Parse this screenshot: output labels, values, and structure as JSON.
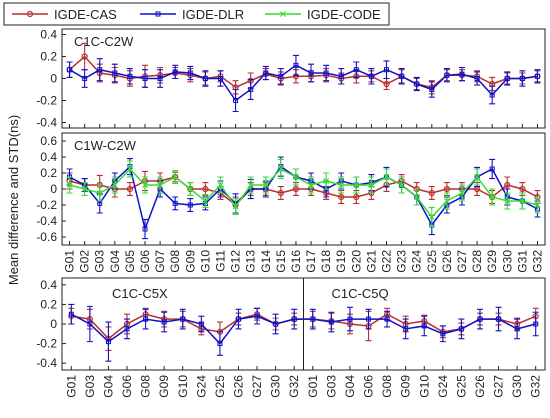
{
  "chart_data": [
    {
      "type": "line",
      "annotation": "C1C-C2W",
      "ylim": [
        -0.45,
        0.45
      ],
      "yticks": [
        -0.4,
        -0.2,
        0,
        0.2,
        0.4
      ],
      "series": [
        {
          "color": "#b8312f",
          "marker": "circle",
          "values": [
            0.08,
            0.2,
            0.05,
            0.03,
            0.0,
            0.02,
            0.03,
            0.05,
            0.03,
            0.0,
            0.02,
            -0.08,
            -0.02,
            0.04,
            0.0,
            0.02,
            0.02,
            0.03,
            0.0,
            0.02,
            0.02,
            -0.05,
            0.02,
            -0.05,
            -0.08,
            0.03,
            0.03,
            0.02,
            -0.05,
            0.0,
            0.0,
            0.02
          ],
          "errors": [
            0.07,
            0.12,
            0.08,
            0.07,
            0.07,
            0.1,
            0.07,
            0.05,
            0.06,
            0.06,
            0.05,
            0.06,
            0.07,
            0.05,
            0.06,
            0.06,
            0.05,
            0.06,
            0.05,
            0.06,
            0.05,
            0.05,
            0.06,
            0.05,
            0.06,
            0.05,
            0.05,
            0.05,
            0.06,
            0.05,
            0.05,
            0.05
          ]
        },
        {
          "color": "#1010c8",
          "marker": "square",
          "values": [
            0.08,
            0.0,
            0.08,
            0.05,
            0.02,
            0.0,
            0.0,
            0.06,
            0.05,
            0.0,
            0.0,
            -0.2,
            -0.1,
            0.05,
            0.02,
            0.12,
            0.05,
            0.05,
            0.02,
            0.08,
            0.02,
            0.08,
            0.02,
            -0.05,
            -0.1,
            0.03,
            0.04,
            0.0,
            -0.15,
            0.0,
            0.0,
            0.02
          ],
          "errors": [
            0.07,
            0.08,
            0.1,
            0.08,
            0.07,
            0.08,
            0.08,
            0.06,
            0.06,
            0.07,
            0.07,
            0.1,
            0.09,
            0.06,
            0.07,
            0.09,
            0.08,
            0.07,
            0.07,
            0.07,
            0.07,
            0.08,
            0.07,
            0.06,
            0.07,
            0.06,
            0.06,
            0.06,
            0.08,
            0.06,
            0.07,
            0.06
          ]
        }
      ]
    },
    {
      "type": "line",
      "annotation": "C1W-C2W",
      "ylabel": "Mean difference and STD(ns)",
      "ylim": [
        -0.7,
        0.7
      ],
      "yticks": [
        -0.6,
        -0.4,
        -0.2,
        0,
        0.2,
        0.4,
        0.6
      ],
      "categories": [
        "G01",
        "G02",
        "G03",
        "G04",
        "G05",
        "G06",
        "G07",
        "G08",
        "G09",
        "G10",
        "G11",
        "G12",
        "G13",
        "G14",
        "G15",
        "G16",
        "G17",
        "G18",
        "G19",
        "G20",
        "G21",
        "G22",
        "G23",
        "G24",
        "G25",
        "G26",
        "G27",
        "G28",
        "G29",
        "G30",
        "G31",
        "G32"
      ],
      "series": [
        {
          "name": "IGDE-CAS",
          "color": "#b8312f",
          "marker": "circle",
          "values": [
            0.1,
            0.05,
            0.05,
            0.0,
            0.0,
            0.1,
            0.1,
            0.15,
            0.0,
            0.0,
            -0.05,
            -0.2,
            0.0,
            0.0,
            -0.05,
            0.0,
            0.0,
            -0.05,
            -0.1,
            -0.1,
            -0.05,
            0.05,
            0.1,
            0.0,
            -0.05,
            0.0,
            0.0,
            0.0,
            -0.1,
            0.05,
            0.0,
            -0.1
          ],
          "errors": [
            0.1,
            0.08,
            0.12,
            0.1,
            0.08,
            0.12,
            0.1,
            0.06,
            0.08,
            0.08,
            0.08,
            0.1,
            0.08,
            0.08,
            0.08,
            0.08,
            0.08,
            0.08,
            0.08,
            0.08,
            0.08,
            0.08,
            0.08,
            0.08,
            0.08,
            0.08,
            0.08,
            0.08,
            0.08,
            0.1,
            0.08,
            0.08
          ]
        },
        {
          "name": "IGDE-DLR",
          "color": "#1010c8",
          "marker": "square",
          "values": [
            0.15,
            0.05,
            -0.18,
            0.1,
            0.28,
            -0.5,
            0.0,
            -0.18,
            -0.2,
            -0.18,
            0.0,
            -0.18,
            0.0,
            0.0,
            0.28,
            0.15,
            0.1,
            0.0,
            0.1,
            0.05,
            0.08,
            0.15,
            0.05,
            -0.1,
            -0.45,
            -0.2,
            -0.1,
            0.15,
            0.25,
            -0.1,
            -0.15,
            -0.25
          ],
          "errors": [
            0.1,
            0.08,
            0.12,
            0.1,
            0.1,
            0.12,
            0.1,
            0.08,
            0.08,
            0.08,
            0.1,
            0.12,
            0.12,
            0.1,
            0.12,
            0.1,
            0.1,
            0.1,
            0.1,
            0.1,
            0.1,
            0.12,
            0.1,
            0.1,
            0.12,
            0.1,
            0.1,
            0.12,
            0.12,
            0.1,
            0.1,
            0.1
          ]
        },
        {
          "name": "IGDE-CODE",
          "color": "#33dd33",
          "marker": "x",
          "values": [
            0.05,
            0.0,
            -0.05,
            0.05,
            0.25,
            0.05,
            0.05,
            0.15,
            0.0,
            -0.15,
            0.05,
            -0.22,
            0.05,
            0.05,
            0.25,
            0.15,
            0.05,
            0.1,
            0.05,
            0.05,
            0.05,
            0.15,
            0.05,
            -0.1,
            -0.35,
            -0.15,
            -0.05,
            0.15,
            -0.1,
            -0.15,
            -0.15,
            -0.2
          ],
          "errors": [
            0.1,
            0.08,
            0.1,
            0.1,
            0.1,
            0.1,
            0.1,
            0.08,
            0.08,
            0.08,
            0.1,
            0.1,
            0.1,
            0.1,
            0.12,
            0.1,
            0.1,
            0.1,
            0.1,
            0.1,
            0.1,
            0.1,
            0.1,
            0.1,
            0.12,
            0.1,
            0.1,
            0.1,
            0.1,
            0.1,
            0.1,
            0.1
          ]
        }
      ]
    },
    {
      "type": "line",
      "annotations": [
        "C1C-C5X",
        "C1C-C5Q"
      ],
      "ylim": [
        -0.47,
        0.47
      ],
      "yticks": [
        -0.4,
        -0.2,
        0,
        0.2,
        0.4
      ],
      "categories": [
        "G01",
        "G03",
        "G04",
        "G06",
        "G08",
        "G09",
        "G10",
        "G24",
        "G25",
        "G26",
        "G27",
        "G30",
        "G32",
        "G01",
        "G03",
        "G04",
        "G06",
        "G08",
        "G09",
        "G10",
        "G24",
        "G25",
        "G26",
        "G27",
        "G30",
        "G32"
      ],
      "series": [
        {
          "color": "#b8312f",
          "marker": "circle",
          "values": [
            0.08,
            0.05,
            -0.15,
            0.0,
            0.1,
            0.05,
            0.05,
            -0.05,
            -0.08,
            0.05,
            0.1,
            0.0,
            0.05,
            0.05,
            0.03,
            0.0,
            -0.02,
            0.1,
            0.0,
            0.03,
            -0.08,
            -0.05,
            0.05,
            0.05,
            0.0,
            0.08
          ],
          "errors": [
            0.08,
            0.1,
            0.12,
            0.1,
            0.06,
            0.08,
            0.08,
            0.06,
            0.1,
            0.06,
            0.06,
            0.06,
            0.06,
            0.08,
            0.08,
            0.1,
            0.15,
            0.06,
            0.08,
            0.06,
            0.06,
            0.06,
            0.06,
            0.06,
            0.06,
            0.08
          ]
        },
        {
          "color": "#1010c8",
          "marker": "square",
          "values": [
            0.1,
            0.0,
            -0.18,
            -0.05,
            0.05,
            0.02,
            0.05,
            0.0,
            -0.2,
            0.05,
            0.08,
            0.0,
            0.05,
            0.05,
            0.02,
            0.05,
            0.05,
            0.05,
            -0.05,
            -0.02,
            -0.1,
            -0.05,
            0.05,
            0.05,
            -0.05,
            0.0
          ],
          "errors": [
            0.1,
            0.18,
            0.2,
            0.1,
            0.1,
            0.1,
            0.1,
            0.08,
            0.12,
            0.1,
            0.08,
            0.1,
            0.1,
            0.1,
            0.1,
            0.12,
            0.1,
            0.08,
            0.1,
            0.1,
            0.08,
            0.1,
            0.1,
            0.12,
            0.1,
            0.12
          ]
        }
      ]
    }
  ]
}
